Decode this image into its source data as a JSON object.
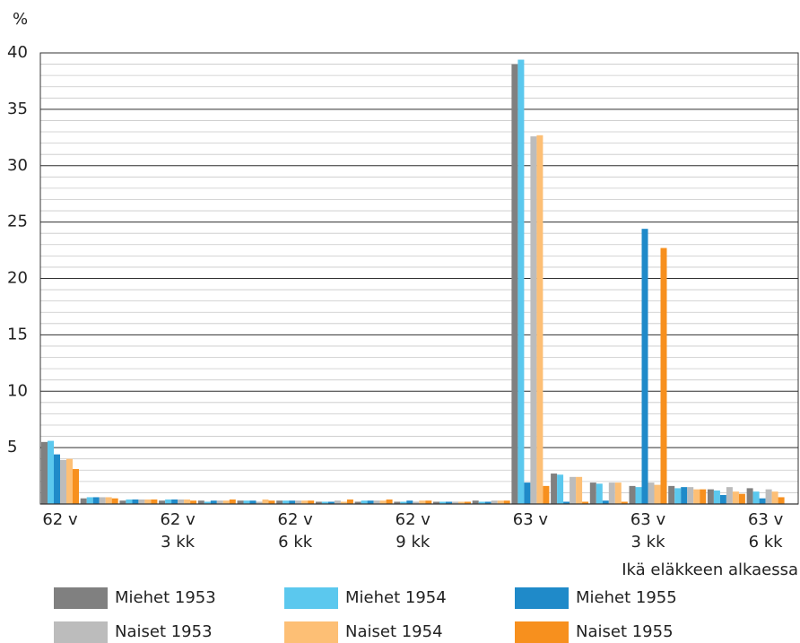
{
  "chart_data": {
    "type": "bar",
    "y_label": "%",
    "x_label": "Ikä eläkkeen alkaessa",
    "categories": [
      [
        "62 v"
      ],
      null,
      null,
      [
        "62 v",
        "3 kk"
      ],
      null,
      null,
      [
        "62 v",
        "6 kk"
      ],
      null,
      null,
      [
        "62 v",
        "9 kk"
      ],
      null,
      null,
      [
        "63 v"
      ],
      null,
      null,
      [
        "63 v",
        "3 kk"
      ],
      null,
      null,
      [
        "63 v",
        "6 kk"
      ]
    ],
    "series": [
      {
        "name": "Miehet 1953",
        "color": "#808080",
        "values": [
          5.5,
          0.5,
          0.3,
          0.3,
          0.3,
          0.3,
          0.3,
          0.2,
          0.2,
          0.2,
          0.2,
          0.3,
          39.0,
          2.7,
          1.9,
          1.6,
          1.6,
          1.3,
          1.4
        ]
      },
      {
        "name": "Miehet 1954",
        "color": "#5bc8ee",
        "values": [
          5.6,
          0.6,
          0.4,
          0.4,
          0.2,
          0.3,
          0.3,
          0.2,
          0.3,
          0.2,
          0.2,
          0.2,
          39.4,
          2.6,
          1.8,
          1.5,
          1.4,
          1.2,
          1.1
        ]
      },
      {
        "name": "Miehet 1955",
        "color": "#1f8ac9",
        "values": [
          4.4,
          0.6,
          0.4,
          0.4,
          0.3,
          0.3,
          0.3,
          0.2,
          0.3,
          0.3,
          0.2,
          0.2,
          1.9,
          0.2,
          0.3,
          24.4,
          1.5,
          0.8,
          0.5
        ]
      },
      {
        "name": "Naiset 1953",
        "color": "#bcbcbc",
        "values": [
          3.9,
          0.6,
          0.4,
          0.4,
          0.3,
          0.2,
          0.3,
          0.3,
          0.3,
          0.2,
          0.2,
          0.3,
          32.6,
          2.4,
          1.9,
          1.9,
          1.5,
          1.5,
          1.3
        ]
      },
      {
        "name": "Naiset 1954",
        "color": "#fdbf75",
        "values": [
          4.0,
          0.6,
          0.4,
          0.4,
          0.3,
          0.4,
          0.3,
          0.2,
          0.3,
          0.3,
          0.2,
          0.3,
          32.7,
          2.4,
          1.9,
          1.7,
          1.3,
          1.1,
          1.1
        ]
      },
      {
        "name": "Naiset 1955",
        "color": "#f7901e",
        "values": [
          3.1,
          0.5,
          0.4,
          0.3,
          0.4,
          0.3,
          0.3,
          0.4,
          0.4,
          0.3,
          0.2,
          0.3,
          1.6,
          0.2,
          0.2,
          22.7,
          1.3,
          0.9,
          0.6
        ]
      }
    ],
    "ylim": [
      0,
      40
    ],
    "yticks": [
      5,
      10,
      15,
      20,
      25,
      30,
      35,
      40
    ],
    "grid": true,
    "minor_grid_step": 1
  }
}
